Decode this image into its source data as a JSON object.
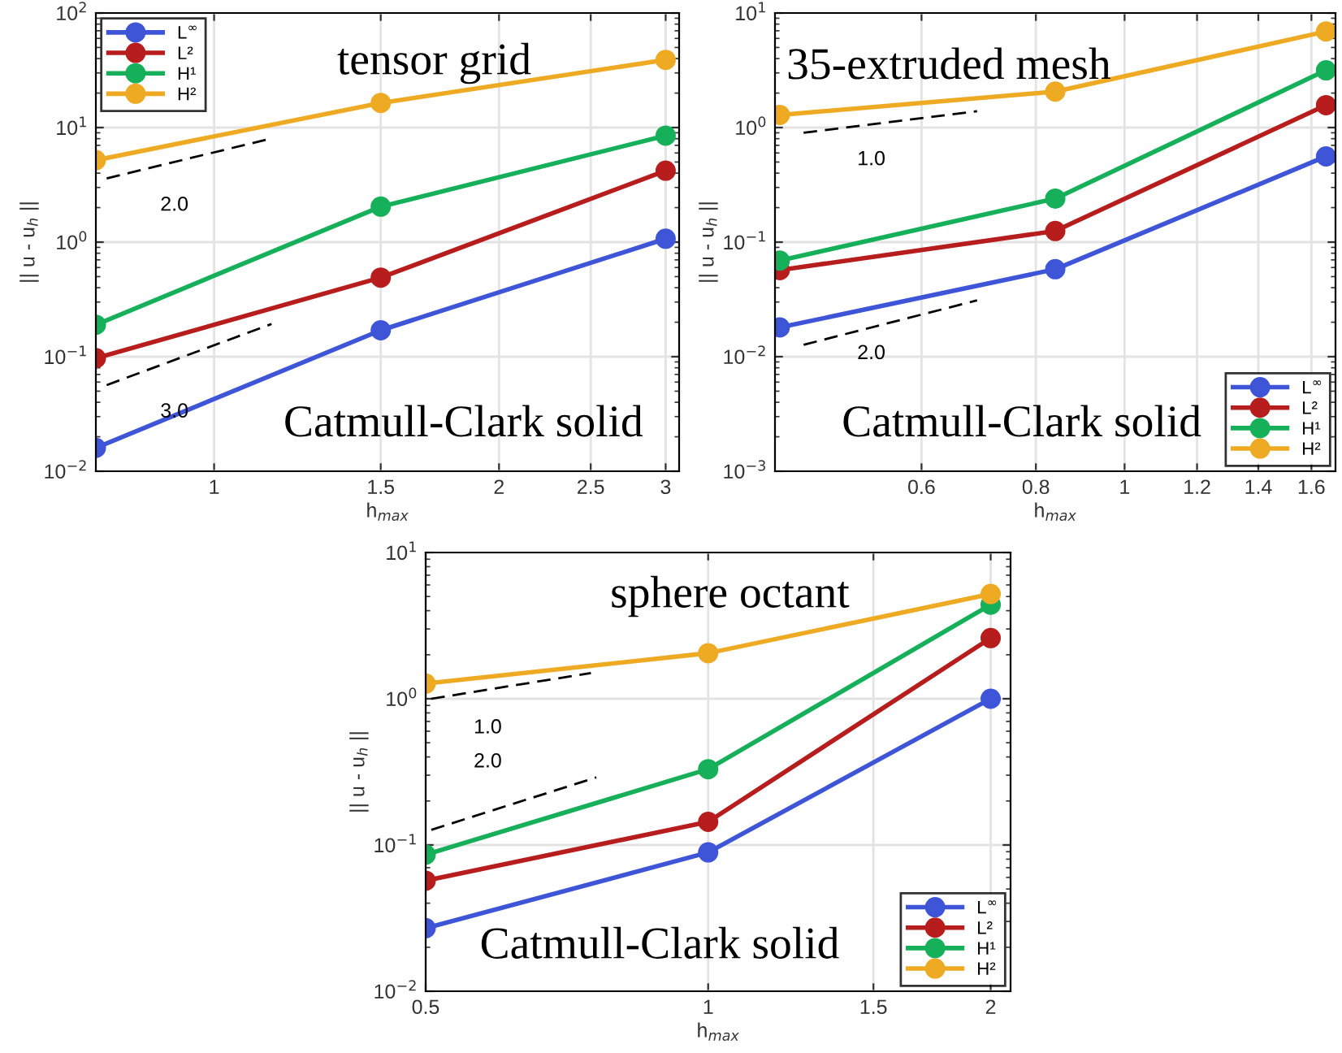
{
  "chart_data": [
    {
      "type": "line",
      "title": "tensor grid",
      "xlabel": "h$_{max}$",
      "ylabel": "|| u - u$_{h}$ ||",
      "log": "xy",
      "grid": true,
      "legend": "top left",
      "marker": "circle",
      "x": [
        0.75,
        1.5,
        3
      ],
      "xlim": [
        0.75,
        3.1
      ],
      "xticks": [
        1,
        1.5,
        2,
        2.5,
        3
      ],
      "ylim": [
        0.01,
        100
      ],
      "yticks": [
        {
          "value": 0.01,
          "label": "10$^{−2}$"
        },
        {
          "value": 0.1,
          "label": "10$^{−1}$"
        },
        {
          "value": 1,
          "label": "10$^{0}$"
        },
        {
          "value": 10,
          "label": "10$^{1}$"
        },
        {
          "value": 100,
          "label": "10$^{2}$"
        }
      ],
      "series": [
        {
          "name": "L$^{∞}$",
          "color": "#3d55d6",
          "values": [
            0.016,
            0.17,
            1.07
          ]
        },
        {
          "name": "L²",
          "color": "#b81d1d",
          "values": [
            0.097,
            0.49,
            4.2
          ]
        },
        {
          "name": "H¹",
          "color": "#16b05a",
          "values": [
            0.19,
            2.04,
            8.5
          ]
        },
        {
          "name": "H²",
          "color": "#eeaa22",
          "values": [
            5.2,
            16.4,
            39
          ]
        },
        {
          "color": "#000000",
          "line_style": "dashed",
          "marker": "none",
          "x": [
            0.77,
            1.14
          ],
          "values": [
            3.6,
            7.9
          ]
        },
        {
          "color": "#000000",
          "line_style": "dashed",
          "marker": "none",
          "x": [
            0.77,
            1.15
          ],
          "values": [
            0.0565,
            0.193
          ]
        }
      ],
      "annotations": [
        "Catmull-Clark solid",
        "2.0",
        "3.0"
      ]
    },
    {
      "type": "line",
      "title": "35-extruded mesh",
      "xlabel": "h$_{max}$",
      "ylabel": "|| u - u$_{h}$ ||",
      "log": "xy",
      "grid": true,
      "legend": "bottom right",
      "marker": "circle",
      "x": [
        0.42,
        0.84,
        1.66
      ],
      "xlim": [
        0.415,
        1.7
      ],
      "xticks": [
        0.6,
        0.8,
        1,
        1.2,
        1.4,
        1.6
      ],
      "ylim": [
        0.001,
        10
      ],
      "yticks": [
        {
          "value": 0.001,
          "label": "10$^{−3}$"
        },
        {
          "value": 0.01,
          "label": "10$^{−2}$"
        },
        {
          "value": 0.1,
          "label": "10$^{−1}$"
        },
        {
          "value": 1,
          "label": "10$^{0}$"
        },
        {
          "value": 10,
          "label": "10$^{1}$"
        }
      ],
      "series": [
        {
          "name": "L$^{∞}$",
          "color": "#3d55d6",
          "values": [
            0.018,
            0.058,
            0.56
          ]
        },
        {
          "name": "L²",
          "color": "#b81d1d",
          "values": [
            0.057,
            0.125,
            1.57
          ]
        },
        {
          "name": "H¹",
          "color": "#16b05a",
          "values": [
            0.069,
            0.24,
            3.16
          ]
        },
        {
          "name": "H²",
          "color": "#eeaa22",
          "values": [
            1.29,
            2.06,
            6.9
          ]
        },
        {
          "color": "#000000",
          "line_style": "dashed",
          "marker": "none",
          "x": [
            0.446,
            0.69
          ],
          "values": [
            0.9,
            1.39
          ]
        },
        {
          "color": "#000000",
          "line_style": "dashed",
          "marker": "none",
          "x": [
            0.446,
            0.69
          ],
          "values": [
            0.0127,
            0.031
          ]
        }
      ],
      "annotations": [
        "Catmull-Clark solid",
        "1.0",
        "2.0"
      ]
    },
    {
      "type": "line",
      "title": "sphere octant",
      "xlabel": "h$_{max}$",
      "ylabel": "|| u - u$_{h}$ ||",
      "log": "xy",
      "grid": true,
      "legend": "bottom right",
      "marker": "circle",
      "x": [
        0.5,
        1,
        2
      ],
      "xlim": [
        0.5,
        2.1
      ],
      "xticks": [
        0.5,
        1,
        1.5,
        2
      ],
      "ylim": [
        0.01,
        10
      ],
      "yticks": [
        {
          "value": 0.01,
          "label": "10$^{−2}$"
        },
        {
          "value": 0.1,
          "label": "10$^{−1}$"
        },
        {
          "value": 1,
          "label": "10$^{0}$"
        },
        {
          "value": 10,
          "label": "10$^{1}$"
        }
      ],
      "series": [
        {
          "name": "L$^{∞}$",
          "color": "#3d55d6",
          "values": [
            0.027,
            0.089,
            1.0
          ]
        },
        {
          "name": "L²",
          "color": "#b81d1d",
          "values": [
            0.057,
            0.144,
            2.6
          ]
        },
        {
          "name": "H¹",
          "color": "#16b05a",
          "values": [
            0.086,
            0.33,
            4.4
          ]
        },
        {
          "name": "H²",
          "color": "#eeaa22",
          "values": [
            1.27,
            2.05,
            5.2
          ]
        },
        {
          "color": "#000000",
          "line_style": "dashed",
          "marker": "none",
          "x": [
            0.507,
            0.75
          ],
          "values": [
            1.0,
            1.5
          ]
        },
        {
          "color": "#000000",
          "line_style": "dashed",
          "marker": "none",
          "x": [
            0.507,
            0.76
          ],
          "values": [
            0.127,
            0.29
          ]
        }
      ],
      "annotations": [
        "Catmull-Clark solid",
        "1.0",
        "2.0"
      ]
    }
  ]
}
